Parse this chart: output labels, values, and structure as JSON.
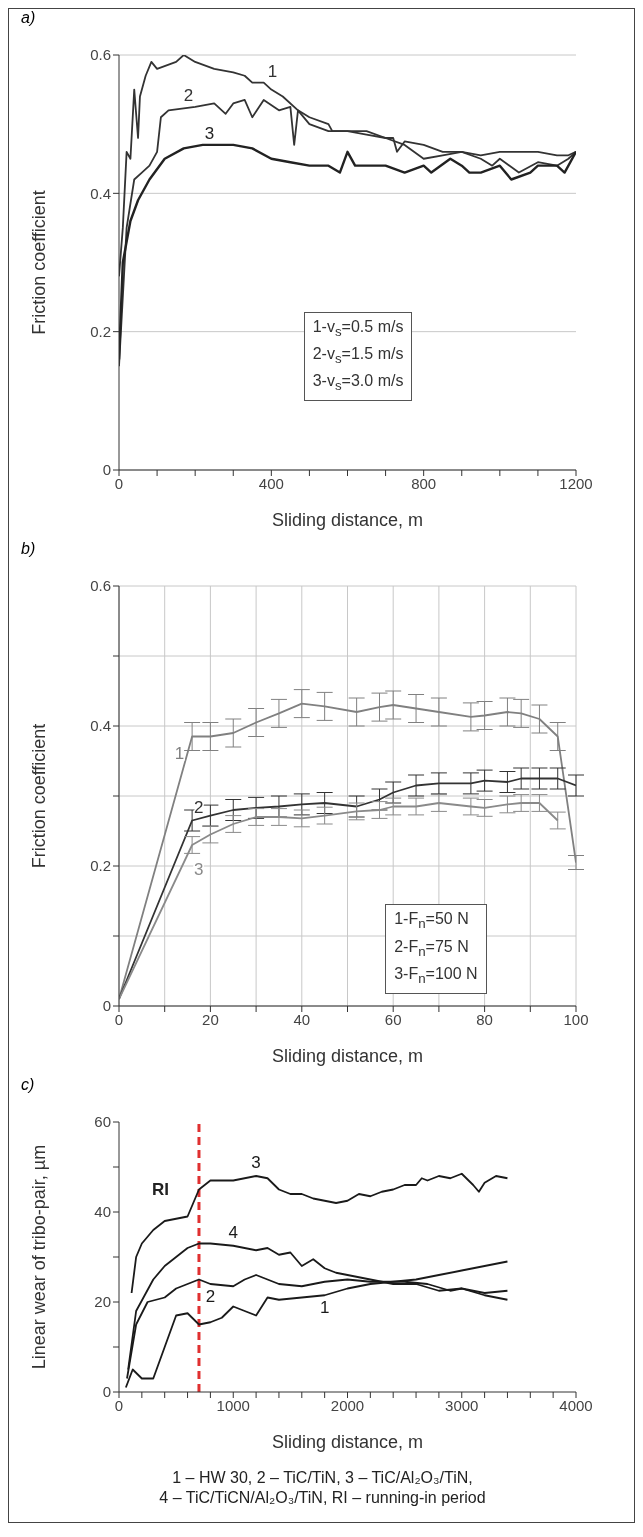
{
  "chart_data": [
    {
      "type": "line",
      "title": "a)",
      "xlabel": "Sliding distance, m",
      "ylabel": "Friction coefficient",
      "xlim": [
        0,
        1200
      ],
      "ylim": [
        0,
        0.6
      ],
      "xticks": [
        0,
        {
          "value": 100,
          "label": null
        },
        {
          "value": 200,
          "label": null
        },
        {
          "value": 300,
          "label": null
        },
        400,
        {
          "value": 500,
          "label": null
        },
        {
          "value": 600,
          "label": null
        },
        {
          "value": 700,
          "label": null
        },
        800,
        {
          "value": 900,
          "label": null
        },
        {
          "value": 1000,
          "label": null
        },
        {
          "value": 1100,
          "label": null
        },
        1200
      ],
      "yticks": [
        0,
        0.2,
        0.4,
        0.6
      ],
      "grid": "y",
      "marker": "none",
      "line_style": "solid",
      "annotations": [
        "1-v$_{s}$=0.5 m/s",
        "2-v$_{s}$=1.5 m/s",
        "3-v$_{s}$=3.0 m/s"
      ],
      "series": [
        {
          "name": "1",
          "color": "#333333",
          "x": [
            0,
            10,
            20,
            30,
            40,
            50,
            55,
            70,
            85,
            100,
            150,
            170,
            200,
            250,
            300,
            330,
            350,
            380,
            400,
            430,
            470,
            500,
            550,
            560,
            600,
            650,
            700,
            720,
            730,
            750,
            800,
            850,
            900,
            950,
            1000,
            1050,
            1100,
            1150,
            1180,
            1200
          ],
          "values": [
            0.28,
            0.35,
            0.46,
            0.45,
            0.55,
            0.48,
            0.54,
            0.57,
            0.59,
            0.58,
            0.59,
            0.6,
            0.59,
            0.58,
            0.575,
            0.57,
            0.56,
            0.56,
            0.55,
            0.54,
            0.52,
            0.51,
            0.5,
            0.49,
            0.49,
            0.485,
            0.48,
            0.48,
            0.46,
            0.475,
            0.47,
            0.46,
            0.46,
            0.455,
            0.46,
            0.46,
            0.46,
            0.455,
            0.455,
            0.46
          ]
        },
        {
          "name": "2",
          "color": "#333333",
          "x": [
            0,
            20,
            40,
            60,
            80,
            100,
            110,
            130,
            200,
            250,
            280,
            300,
            330,
            350,
            380,
            420,
            450,
            460,
            470,
            500,
            550,
            600,
            650,
            700,
            750,
            800,
            850,
            900,
            950,
            980,
            1000,
            1050,
            1100,
            1150,
            1180,
            1200
          ],
          "values": [
            0.15,
            0.35,
            0.42,
            0.43,
            0.44,
            0.46,
            0.51,
            0.52,
            0.525,
            0.53,
            0.515,
            0.53,
            0.535,
            0.51,
            0.535,
            0.52,
            0.525,
            0.47,
            0.52,
            0.5,
            0.49,
            0.49,
            0.49,
            0.48,
            0.47,
            0.45,
            0.455,
            0.46,
            0.45,
            0.44,
            0.45,
            0.43,
            0.445,
            0.44,
            0.45,
            0.46
          ]
        },
        {
          "name": "3",
          "color": "#222222",
          "x": [
            0,
            10,
            30,
            50,
            80,
            120,
            170,
            220,
            300,
            350,
            400,
            450,
            500,
            550,
            580,
            600,
            620,
            700,
            750,
            800,
            820,
            870,
            900,
            920,
            950,
            1000,
            1030,
            1080,
            1100,
            1150,
            1170,
            1200
          ],
          "values": [
            0.16,
            0.3,
            0.36,
            0.39,
            0.42,
            0.45,
            0.465,
            0.47,
            0.47,
            0.465,
            0.45,
            0.445,
            0.44,
            0.44,
            0.43,
            0.46,
            0.44,
            0.44,
            0.43,
            0.44,
            0.43,
            0.45,
            0.44,
            0.43,
            0.43,
            0.44,
            0.42,
            0.43,
            0.44,
            0.44,
            0.43,
            0.46
          ]
        }
      ]
    },
    {
      "type": "line",
      "title": "b)",
      "xlabel": "Sliding distance, m",
      "ylabel": "Friction coefficient",
      "xlim": [
        0,
        100
      ],
      "ylim": [
        0,
        0.6
      ],
      "xticks": [
        0,
        {
          "value": 10,
          "label": null
        },
        20,
        {
          "value": 30,
          "label": null
        },
        40,
        {
          "value": 50,
          "label": null
        },
        60,
        {
          "value": 70,
          "label": null
        },
        80,
        {
          "value": 90,
          "label": null
        },
        100
      ],
      "yticks": [
        0,
        {
          "value": 0.1,
          "label": null
        },
        0.2,
        {
          "value": 0.3,
          "label": null
        },
        0.4,
        {
          "value": 0.5,
          "label": null
        },
        0.6
      ],
      "grid": true,
      "marker": "none",
      "line_style": "solid",
      "annotations": [
        "1-F$_{n}$=50 N",
        "2-F$_{n}$=75 N",
        "3-F$_{n}$=100 N"
      ],
      "series": [
        {
          "name": "1",
          "color": "#808080",
          "x": [
            0,
            16,
            20,
            25,
            30,
            35,
            40,
            45,
            52,
            57,
            60,
            65,
            70,
            77,
            80,
            85,
            88,
            92,
            96,
            100
          ],
          "values": [
            0.01,
            0.385,
            0.385,
            0.39,
            0.405,
            0.418,
            0.432,
            0.428,
            0.42,
            0.427,
            0.43,
            0.425,
            0.42,
            0.413,
            0.415,
            0.42,
            0.418,
            0.41,
            0.385,
            0.205
          ],
          "errors": [
            null,
            0.02,
            0.02,
            0.02,
            0.02,
            0.02,
            0.02,
            0.02,
            0.02,
            0.02,
            0.02,
            0.02,
            0.02,
            0.02,
            0.02,
            0.02,
            0.02,
            0.02,
            0.02,
            0.01
          ]
        },
        {
          "name": "2",
          "color": "#333333",
          "x": [
            0,
            16,
            20,
            25,
            30,
            35,
            40,
            45,
            52,
            57,
            60,
            65,
            70,
            77,
            80,
            85,
            88,
            92,
            96,
            100
          ],
          "values": [
            0.01,
            0.265,
            0.272,
            0.28,
            0.283,
            0.285,
            0.288,
            0.29,
            0.285,
            0.295,
            0.305,
            0.315,
            0.318,
            0.318,
            0.322,
            0.32,
            0.325,
            0.325,
            0.325,
            0.315
          ],
          "errors": [
            null,
            0.015,
            0.015,
            0.015,
            0.015,
            0.015,
            0.015,
            0.015,
            0.015,
            0.015,
            0.015,
            0.015,
            0.015,
            0.015,
            0.015,
            0.015,
            0.015,
            0.015,
            0.015,
            0.015
          ]
        },
        {
          "name": "3",
          "color": "#8a8a8a",
          "x": [
            0,
            16,
            20,
            25,
            30,
            35,
            40,
            45,
            52,
            57,
            60,
            65,
            70,
            77,
            80,
            85,
            88,
            92,
            96
          ],
          "values": [
            0.01,
            0.23,
            0.245,
            0.26,
            0.27,
            0.27,
            0.268,
            0.272,
            0.278,
            0.28,
            0.285,
            0.285,
            0.29,
            0.285,
            0.283,
            0.288,
            0.29,
            0.29,
            0.265
          ],
          "errors": [
            null,
            0.012,
            0.012,
            0.012,
            0.012,
            0.012,
            0.012,
            0.012,
            0.012,
            0.012,
            0.012,
            0.012,
            0.012,
            0.012,
            0.012,
            0.012,
            0.012,
            0.012,
            0.012
          ]
        }
      ]
    },
    {
      "type": "line",
      "title": "c)",
      "xlabel": "Sliding distance, m",
      "ylabel": "Linear wear of tribo-pair, µm",
      "xlim": [
        0,
        4000
      ],
      "ylim": [
        0,
        60
      ],
      "xticks": [
        0,
        {
          "value": 200,
          "label": null
        },
        {
          "value": 400,
          "label": null
        },
        {
          "value": 600,
          "label": null
        },
        {
          "value": 800,
          "label": null
        },
        1000,
        {
          "value": 1200,
          "label": null
        },
        {
          "value": 1400,
          "label": null
        },
        {
          "value": 1600,
          "label": null
        },
        {
          "value": 1800,
          "label": null
        },
        2000,
        {
          "value": 2200,
          "label": null
        },
        {
          "value": 2400,
          "label": null
        },
        {
          "value": 2600,
          "label": null
        },
        {
          "value": 2800,
          "label": null
        },
        3000,
        {
          "value": 3200,
          "label": null
        },
        {
          "value": 3400,
          "label": null
        },
        {
          "value": 3600,
          "label": null
        },
        {
          "value": 3800,
          "label": null
        },
        4000
      ],
      "yticks": [
        0,
        {
          "value": 10,
          "label": null
        },
        20,
        {
          "value": 30,
          "label": null
        },
        40,
        {
          "value": 50,
          "label": null
        },
        60
      ],
      "marker": "none",
      "line_style": "solid",
      "ref_lines": [
        {
          "axis": "x",
          "value": 700,
          "label": "RI",
          "color": "#e03030",
          "line_style": "dashed"
        }
      ],
      "series": [
        {
          "name": "1",
          "color": "#1a1a1a",
          "x": [
            60,
            120,
            200,
            300,
            400,
            500,
            600,
            700,
            800,
            900,
            1000,
            1100,
            1200,
            1300,
            1400,
            1600,
            1800,
            2000,
            2200,
            2400,
            2600,
            2800,
            3000,
            3200,
            3400
          ],
          "values": [
            1,
            5,
            3,
            3,
            10,
            17,
            17.5,
            15,
            15.5,
            16.5,
            19,
            18,
            17,
            21,
            20.5,
            21,
            21.5,
            23,
            24,
            24.5,
            25,
            26,
            27,
            28,
            29
          ]
        },
        {
          "name": "2",
          "color": "#1a1a1a",
          "x": [
            70,
            150,
            250,
            400,
            500,
            600,
            700,
            800,
            1000,
            1100,
            1200,
            1300,
            1400,
            1600,
            1800,
            2000,
            2200,
            2400,
            2500,
            2700,
            2900,
            3000,
            3200,
            3400
          ],
          "values": [
            3,
            15,
            20,
            21,
            23,
            24,
            25,
            24,
            23.5,
            25,
            26,
            25,
            24,
            23.5,
            24.5,
            25,
            24.5,
            24.5,
            24.5,
            24,
            22.5,
            23,
            21.5,
            20.5
          ]
        },
        {
          "name": "3",
          "color": "#1a1a1a",
          "x": [
            110,
            150,
            200,
            300,
            400,
            600,
            650,
            700,
            750,
            800,
            1000,
            1200,
            1300,
            1400,
            1500,
            1600,
            1700,
            1800,
            1900,
            2000,
            2100,
            2200,
            2300,
            2400,
            2500,
            2600,
            2650,
            2700,
            2800,
            2900,
            3000,
            3100,
            3150,
            3200,
            3300,
            3400
          ],
          "values": [
            22,
            30,
            33,
            36,
            38,
            39,
            42,
            45,
            46,
            47,
            47,
            48,
            47.5,
            45,
            44,
            44,
            43,
            42.5,
            42,
            42.5,
            44,
            43.5,
            44.5,
            45,
            46,
            46,
            47.5,
            47,
            48,
            47.5,
            48.5,
            46,
            44.5,
            46.5,
            48,
            47.5
          ]
        },
        {
          "name": "4",
          "color": "#1a1a1a",
          "x": [
            80,
            150,
            300,
            400,
            500,
            600,
            700,
            800,
            1000,
            1200,
            1300,
            1400,
            1500,
            1600,
            1700,
            1800,
            1900,
            2000,
            2200,
            2400,
            2600,
            2800,
            3000,
            3200,
            3400
          ],
          "values": [
            5,
            18,
            25,
            28,
            30,
            32,
            33,
            33,
            32.5,
            31.5,
            32,
            30.5,
            31,
            28,
            29.5,
            27.5,
            26.5,
            26,
            25,
            24,
            24,
            22.5,
            23,
            22,
            22.5
          ]
        }
      ]
    },
    {
      "type": "other",
      "annotations": [
        "1 – HW 30, 2 – TiC/TiN, 3 – TiC/Al₂O₃/TiN,",
        "4 – TiC/TiCN/Al₂O₃/TiN, RI – running-in period"
      ]
    }
  ]
}
